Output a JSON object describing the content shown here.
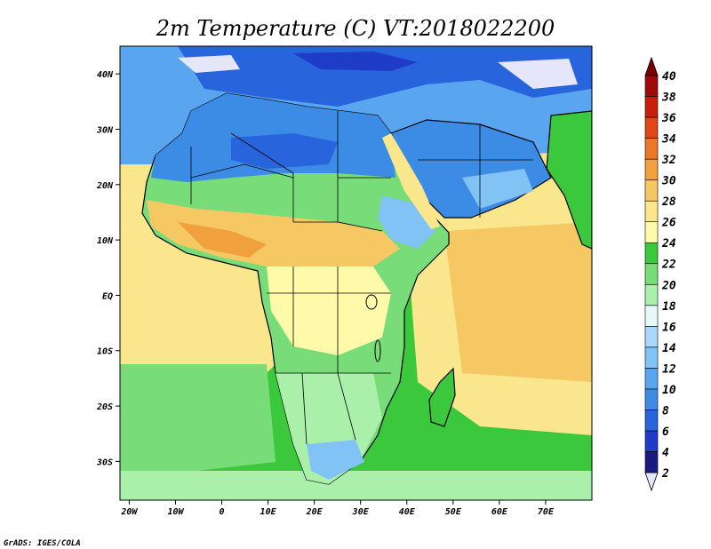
{
  "title": "2m Temperature (C) VT:2018022200",
  "credit": "GrADS: IGES/COLA",
  "map": {
    "projection": "lat-lon",
    "lon_range": [
      -22,
      80
    ],
    "lat_range": [
      -37,
      45
    ],
    "variable": "2m Temperature",
    "units": "C",
    "valid_time": "2018022200",
    "x_ticks": [
      "20W",
      "10W",
      "0",
      "10E",
      "20E",
      "30E",
      "40E",
      "50E",
      "60E",
      "70E"
    ],
    "y_ticks": [
      "40N",
      "30N",
      "20N",
      "10N",
      "EQ",
      "10S",
      "20S",
      "30S"
    ],
    "features": [
      "coastlines",
      "national borders",
      "lakes"
    ]
  },
  "colorbar": {
    "levels": [
      "2",
      "4",
      "6",
      "8",
      "10",
      "12",
      "14",
      "16",
      "18",
      "20",
      "22",
      "24",
      "26",
      "28",
      "30",
      "32",
      "34",
      "36",
      "38",
      "40"
    ],
    "colors": [
      "#e6e6fa",
      "#1a1a80",
      "#1e3cc8",
      "#2864dc",
      "#3c8ce6",
      "#5aa5f0",
      "#82c3f5",
      "#aad7fa",
      "#e6fafa",
      "#aaf0aa",
      "#78dc78",
      "#3cc83c",
      "#fffaaa",
      "#fae68c",
      "#f5c864",
      "#f0a03c",
      "#eb7828",
      "#e14614",
      "#c81e0a",
      "#a00a0a",
      "#780000"
    ],
    "extend": "both"
  }
}
